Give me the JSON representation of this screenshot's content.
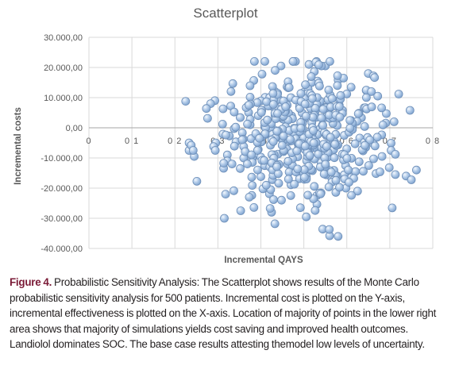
{
  "chart_data": {
    "type": "scatter",
    "title": "Scatterplot",
    "xlabel": "Incremental QAYS",
    "ylabel": "Incremental costs",
    "xlim": [
      0,
      0.8
    ],
    "ylim": [
      -40000,
      30000
    ],
    "x_ticks": [
      "0",
      "0 1",
      "0 2",
      "0 3",
      "0 4",
      "0 5",
      "0 6",
      "0 7",
      "0 8"
    ],
    "y_ticks": [
      "30.000,00",
      "20.000,00",
      "10.000,00",
      "0,00",
      "-10.000,00",
      "-20.000,00",
      "-30.000,00",
      "-40.000,00"
    ],
    "grid": true,
    "legend": "none",
    "marker_color": "#a7c2e3",
    "n_points": 500,
    "series": [
      {
        "points": [
          [
            0.475,
            22000
          ],
          [
            0.512,
            21000
          ],
          [
            0.55,
            20500
          ],
          [
            0.541,
            20500
          ],
          [
            0.447,
            20500
          ],
          [
            0.65,
            18000
          ],
          [
            0.662,
            17200
          ],
          [
            0.582,
            16500
          ],
          [
            0.532,
            15500
          ],
          [
            0.518,
            15000
          ],
          [
            0.461,
            13600
          ],
          [
            0.433,
            12000
          ],
          [
            0.225,
            8800
          ],
          [
            0.293,
            9000
          ],
          [
            0.283,
            8000
          ],
          [
            0.33,
            7200
          ],
          [
            0.312,
            6300
          ],
          [
            0.747,
            5800
          ],
          [
            0.338,
            5200
          ],
          [
            0.311,
            1200
          ],
          [
            0.338,
            -300
          ],
          [
            0.295,
            -5000
          ],
          [
            0.29,
            -6200
          ],
          [
            0.294,
            -7500
          ],
          [
            0.233,
            -5000
          ],
          [
            0.233,
            -7500
          ],
          [
            0.245,
            -9500
          ],
          [
            0.238,
            -5800
          ],
          [
            0.322,
            -9000
          ],
          [
            0.322,
            -11000
          ],
          [
            0.333,
            -12000
          ],
          [
            0.36,
            -10000
          ],
          [
            0.352,
            -13500
          ],
          [
            0.318,
            -22000
          ],
          [
            0.315,
            -30000
          ],
          [
            0.353,
            -27500
          ],
          [
            0.425,
            -28000
          ],
          [
            0.448,
            -24000
          ],
          [
            0.492,
            -26500
          ],
          [
            0.53,
            -22500
          ],
          [
            0.56,
            -35800
          ],
          [
            0.625,
            -21000
          ],
          [
            0.713,
            -15500
          ],
          [
            0.738,
            -16000
          ],
          [
            0.762,
            -14000
          ],
          [
            0.662,
            -5300
          ],
          [
            0.703,
            -5100
          ],
          [
            0.703,
            -7500
          ],
          [
            0.682,
            -9500
          ],
          [
            0.651,
            -12500
          ],
          [
            0.61,
            -16500
          ],
          [
            0.598,
            -20000
          ],
          [
            0.71,
            2000
          ],
          [
            0.692,
            4700
          ],
          [
            0.672,
            10500
          ],
          [
            0.681,
            6600
          ],
          [
            0.645,
            12400
          ],
          [
            0.6,
            11200
          ],
          [
            0.56,
            10000
          ],
          [
            0.5,
            11800
          ],
          [
            0.47,
            10000
          ],
          [
            0.43,
            7200
          ],
          [
            0.402,
            5600
          ],
          [
            0.37,
            7300
          ],
          [
            0.352,
            3400
          ],
          [
            0.375,
            1000
          ],
          [
            0.41,
            -2300
          ],
          [
            0.395,
            -5000
          ],
          [
            0.44,
            -8700
          ],
          [
            0.462,
            -12000
          ],
          [
            0.4,
            -16200
          ],
          [
            0.38,
            -19100
          ],
          [
            0.42,
            -21900
          ],
          [
            0.47,
            -18900
          ],
          [
            0.52,
            -14200
          ],
          [
            0.555,
            -9800
          ],
          [
            0.6,
            -7000
          ],
          [
            0.63,
            -3400
          ],
          [
            0.575,
            1500
          ],
          [
            0.52,
            4600
          ],
          [
            0.48,
            -500
          ],
          [
            0.45,
            3000
          ],
          [
            0.49,
            7000
          ],
          [
            0.53,
            -2000
          ],
          [
            0.56,
            -4700
          ],
          [
            0.61,
            2400
          ],
          [
            0.64,
            6600
          ],
          [
            0.59,
            5800
          ],
          [
            0.55,
            6800
          ],
          [
            0.42,
            1800
          ],
          [
            0.39,
            -8900
          ],
          [
            0.43,
            -14000
          ],
          [
            0.36,
            -6200
          ],
          [
            0.503,
            -7300
          ],
          [
            0.54,
            -11500
          ],
          [
            0.49,
            -16900
          ],
          [
            0.57,
            -14100
          ],
          [
            0.46,
            4700
          ],
          [
            0.41,
            10100
          ],
          [
            0.5,
            2800
          ]
        ]
      }
    ]
  },
  "caption": {
    "label": "Figure 4.",
    "text": " Probabilistic Sensitivity Analysis: The Scatterplot shows results of the Monte Carlo probabilistic sensitivity analysis for 500 patients. Incremental cost is plotted on the Y-axis, incremental effectiveness is plotted on the X-axis. Location of majority of points in the lower right area shows that majority of simulations yields cost saving and improved health outcomes. Landiolol dominates SOC. The base case results attesting themodel low levels of uncertainty."
  }
}
